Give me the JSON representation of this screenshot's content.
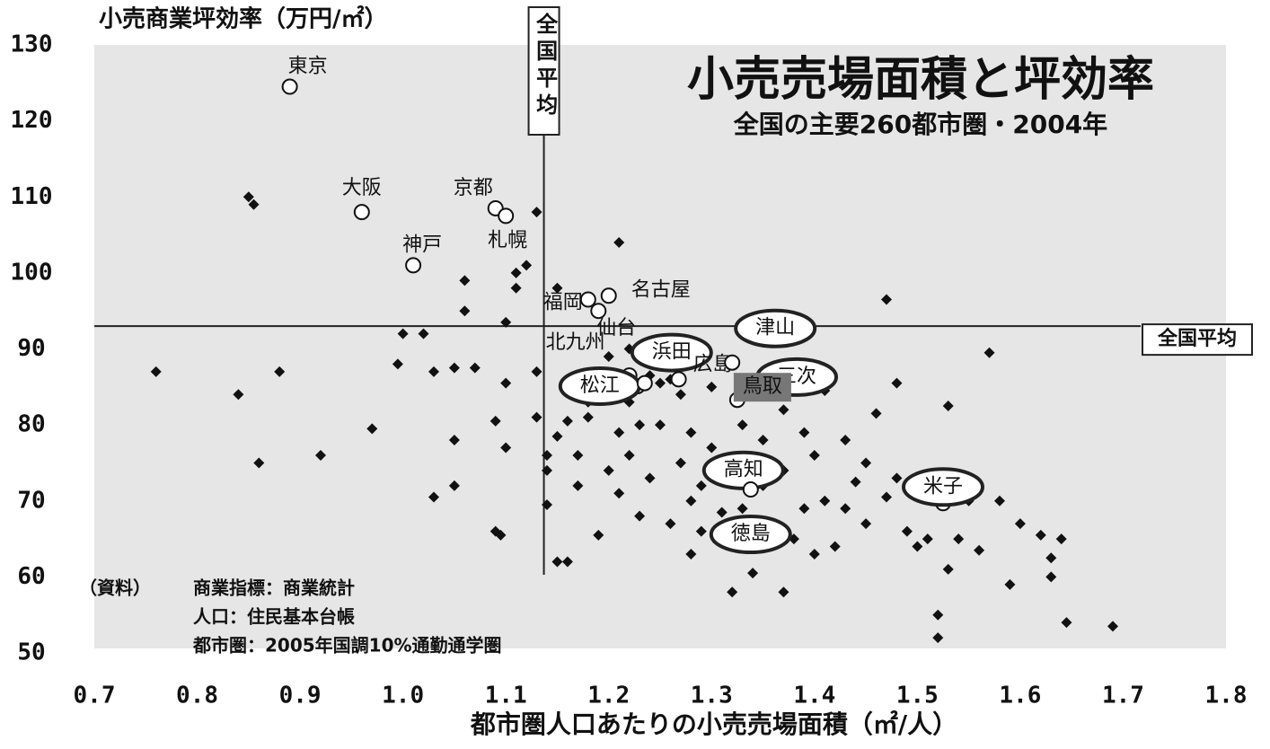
{
  "chart_data": {
    "type": "scatter",
    "title": "小売売場面積と坪効率",
    "subtitle": "全国の主要260都市圏・2004年",
    "y_label": "小売商業坪効率（万円/㎡）",
    "x_label": "都市圏人口あたりの小売売場面積（㎡/人）",
    "source": [
      "（資料）",
      "商業指標：商業統計",
      "人口：住民基本台帳",
      "都市圏：2005年国調10%通勤通学圏"
    ],
    "xlim": [
      0.7,
      1.8
    ],
    "ylim": [
      50,
      130
    ],
    "xticks": [
      0.7,
      0.8,
      0.9,
      {
        "value": 1,
        "label": "1.0"
      },
      1.1,
      1.2,
      1.3,
      1.4,
      1.5,
      1.6,
      1.7,
      1.8
    ],
    "yticks": [
      50,
      60,
      70,
      80,
      90,
      100,
      110,
      120,
      130
    ],
    "average_x": 1.137,
    "average_y": 93,
    "average_x_label": "全国平均",
    "average_y_label": "全国平均",
    "color": "#111111",
    "points": {
      "x": [
        0.76,
        0.84,
        0.85,
        0.855,
        0.86,
        0.88,
        0.92,
        0.97,
        0.995,
        1.0,
        1.02,
        1.03,
        1.03,
        1.05,
        1.05,
        1.05,
        1.06,
        1.06,
        1.07,
        1.09,
        1.09,
        1.095,
        1.1,
        1.1,
        1.1,
        1.11,
        1.11,
        1.12,
        1.13,
        1.13,
        1.13,
        1.14,
        1.14,
        1.15,
        1.16,
        1.14,
        1.15,
        1.16,
        1.17,
        1.17,
        1.18,
        1.19,
        1.2,
        1.21,
        1.21,
        1.21,
        1.22,
        1.22,
        1.23,
        1.24,
        1.25,
        1.25,
        1.26,
        1.27,
        1.27,
        1.28,
        1.28,
        1.29,
        1.29,
        1.3,
        1.3,
        1.31,
        1.31,
        1.32,
        1.32,
        1.33,
        1.33,
        1.34,
        1.34,
        1.35,
        1.35,
        1.36,
        1.37,
        1.37,
        1.38,
        1.39,
        1.39,
        1.4,
        1.4,
        1.41,
        1.41,
        1.42,
        1.43,
        1.44,
        1.45,
        1.45,
        1.46,
        1.47,
        1.47,
        1.48,
        1.48,
        1.49,
        1.5,
        1.51,
        1.52,
        1.52,
        1.53,
        1.53,
        1.54,
        1.55,
        1.56,
        1.57,
        1.58,
        1.59,
        1.6,
        1.62,
        1.63,
        1.63,
        1.64,
        1.645,
        1.69,
        1.25,
        1.24,
        1.26,
        1.2,
        1.19,
        1.18,
        1.16,
        1.15,
        1.22,
        1.23,
        1.28,
        1.36,
        1.37,
        1.43
      ],
      "y": [
        87,
        84,
        110,
        109,
        75,
        87,
        76,
        79.5,
        88,
        92,
        92,
        70.5,
        87,
        87.5,
        78,
        72,
        99,
        95,
        87.5,
        66,
        80.5,
        65.5,
        77,
        85.5,
        93.5,
        100,
        98,
        101,
        108,
        87,
        81,
        76,
        74,
        62,
        62,
        69.5,
        98,
        80.5,
        72,
        76,
        81,
        65.5,
        74,
        104,
        71,
        79,
        90,
        83,
        68,
        73,
        88,
        80,
        67,
        75,
        84,
        70,
        79,
        72,
        66,
        77,
        85,
        68.5,
        64.5,
        58,
        75,
        80,
        69,
        60.5,
        65,
        72,
        78,
        67,
        82,
        74,
        65,
        79,
        69,
        63,
        76,
        84.5,
        70,
        64,
        78,
        72.5,
        67,
        75,
        81.5,
        70.5,
        96.5,
        85.5,
        73,
        66,
        64,
        65,
        55,
        52,
        82.5,
        61,
        65,
        70,
        63.5,
        89.5,
        70,
        59,
        67,
        65.5,
        62.5,
        60,
        65,
        54,
        53.5,
        85.5,
        86.5,
        86,
        89,
        86,
        83,
        84.5,
        78.5,
        76,
        80,
        63,
        85,
        58,
        69
      ]
    },
    "labeled": {
      "labels": [
        "東京",
        "大阪",
        "京都",
        "札幌",
        "神戸",
        "名古屋",
        "福岡",
        "仙台",
        "北九州",
        "松江",
        "浜田",
        "広島",
        "津山",
        "三次",
        "鳥取",
        "高知",
        "徳島",
        "米子"
      ],
      "x": [
        0.89,
        0.96,
        1.09,
        1.1,
        1.01,
        1.2,
        1.18,
        1.19,
        1.22,
        1.228,
        1.235,
        1.268,
        1.32,
        1.374,
        1.325,
        1.338,
        1.338,
        1.525
      ],
      "y": [
        124.5,
        108,
        108.5,
        107.5,
        101,
        97,
        96.5,
        95,
        86.5,
        85.1,
        85.5,
        86,
        88.2,
        87,
        83.3,
        72.6,
        71.5,
        69.7
      ]
    }
  }
}
